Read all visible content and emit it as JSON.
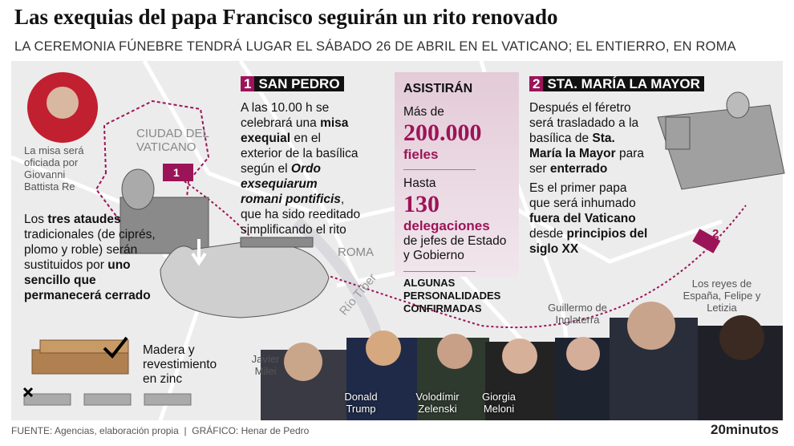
{
  "header": {
    "title": "Las exequias del papa Francisco seguirán un rito renovado",
    "subtitle": "LA CEREMONIA FÚNEBRE TENDRÁ LUGAR EL SÁBADO 26 DE ABRIL EN EL VATICANO; EL ENTIERRO, EN ROMA"
  },
  "map": {
    "vatican": "CIUDAD DEL VATICANO",
    "rome": "ROMA",
    "river": "Río Tíber",
    "marker1": "1",
    "marker2": "2"
  },
  "celebrant": {
    "caption": "La misa será oficiada por Giovanni Battista Re"
  },
  "coffins": {
    "text": [
      "Los ",
      "tres ataudes",
      " tradicionales (de ciprés, plomo y roble) serán sustituidos por ",
      "uno sencillo que permanecerá cerrado"
    ],
    "material": "Madera y revestimiento en zinc"
  },
  "section1": {
    "number": "1",
    "title": "SAN PEDRO",
    "text": [
      "A las 10.00 h se celebrará una ",
      "misa exequial",
      " en el exterior de la basílica según el ",
      "Ordo exsequiarum romani pontificis",
      ", que ha sido reeditado simplificando el rito"
    ]
  },
  "attendance": {
    "title": "ASISTIRÁN",
    "more_than": "Más de",
    "faithful_count": "200.000",
    "faithful": "fieles",
    "up_to": "Hasta",
    "delegations_count": "130",
    "delegations": "delegaciones",
    "delegations_detail": "de jefes de Estado y Gobierno",
    "personalities": "ALGUNAS PERSONALIDADES CONFIRMADAS"
  },
  "section2": {
    "number": "2",
    "title": "STA. MARÍA LA MAYOR",
    "text1": [
      "Después el féretro será trasladado a la basílica de ",
      "Sta. María la Mayor",
      " para ser ",
      "enterrado"
    ],
    "text2": [
      "Es el primer papa que será inhumado ",
      "fuera del Vaticano",
      " desde ",
      "principios del siglo XX"
    ]
  },
  "people": [
    "Javier Milei",
    "Donald Trump",
    "Volodímir Zelenski",
    "Giorgia Meloni",
    "Guillermo de Inglaterra",
    "Los reyes de España, Felipe y Letizia"
  ],
  "footer": {
    "source": "FUENTE: Agencias, elaboración propia  |  GRÁFICO: Henar de Pedro",
    "brand": "20minutos"
  }
}
